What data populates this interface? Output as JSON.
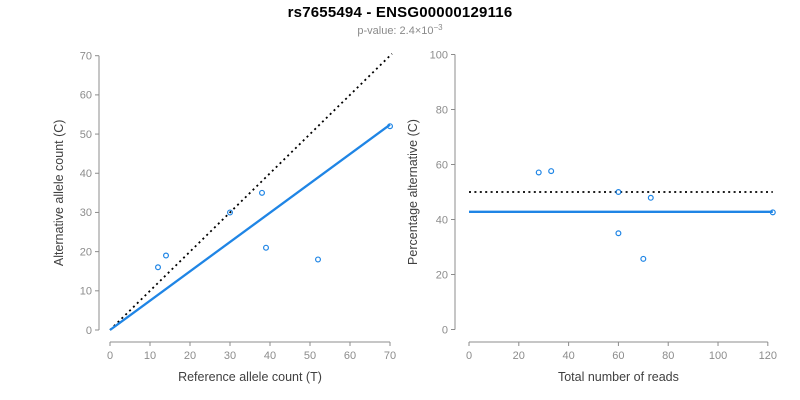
{
  "header": {
    "title": "rs7655494 - ENSG00000129116",
    "subtitle_base": "p-value: 2.4×10",
    "subtitle_exponent": "−3"
  },
  "colors": {
    "accent_blue": "#1f85e5",
    "dotted_black": "#000000",
    "axis_gray": "#8c8c8c",
    "tick_label_gray": "#8c8c8c",
    "axis_title_gray": "#404040",
    "subtitle_gray": "#8a8a8a",
    "background": "#ffffff"
  },
  "chart_data": [
    {
      "type": "scatter",
      "name": "allele-counts",
      "xlabel": "Reference allele count (T)",
      "ylabel": "Alternative allele count (C)",
      "xlim": [
        0,
        70
      ],
      "ylim": [
        0,
        70
      ],
      "xticks": [
        0,
        10,
        20,
        30,
        40,
        50,
        60,
        70
      ],
      "yticks": [
        0,
        10,
        20,
        30,
        40,
        50,
        60,
        70
      ],
      "grid": false,
      "legend": "none",
      "points": [
        [
          12,
          16
        ],
        [
          14,
          19
        ],
        [
          30,
          30
        ],
        [
          38,
          35
        ],
        [
          39,
          21
        ],
        [
          52,
          18
        ],
        [
          70,
          52
        ]
      ],
      "lines": [
        {
          "name": "identity-line",
          "style": "dotted",
          "color": "#000000",
          "from": [
            0,
            0
          ],
          "to": [
            70.5,
            70.5
          ]
        },
        {
          "name": "regression-line",
          "style": "solid",
          "color": "#1f85e5",
          "from": [
            0,
            0
          ],
          "to": [
            70,
            52.4
          ]
        }
      ]
    },
    {
      "type": "scatter",
      "name": "percentage-vs-depth",
      "xlabel": "Total number of reads",
      "ylabel": "Percentage alternative (C)",
      "xlim": [
        0,
        122
      ],
      "ylim": [
        0,
        100
      ],
      "xticks": [
        0,
        20,
        40,
        60,
        80,
        100,
        120
      ],
      "yticks": [
        0,
        20,
        40,
        60,
        80,
        100
      ],
      "grid": false,
      "legend": "none",
      "points": [
        [
          28,
          57.1
        ],
        [
          33,
          57.6
        ],
        [
          60,
          50.0
        ],
        [
          73,
          47.9
        ],
        [
          60,
          35.0
        ],
        [
          70,
          25.7
        ],
        [
          122,
          42.6
        ]
      ],
      "lines": [
        {
          "name": "fifty-percent-line",
          "style": "dotted",
          "color": "#000000",
          "from": [
            0,
            50
          ],
          "to": [
            122,
            50
          ]
        },
        {
          "name": "mean-percentage-line",
          "style": "solid",
          "color": "#1f85e5",
          "from": [
            0,
            42.8
          ],
          "to": [
            122,
            42.8
          ]
        }
      ]
    }
  ]
}
